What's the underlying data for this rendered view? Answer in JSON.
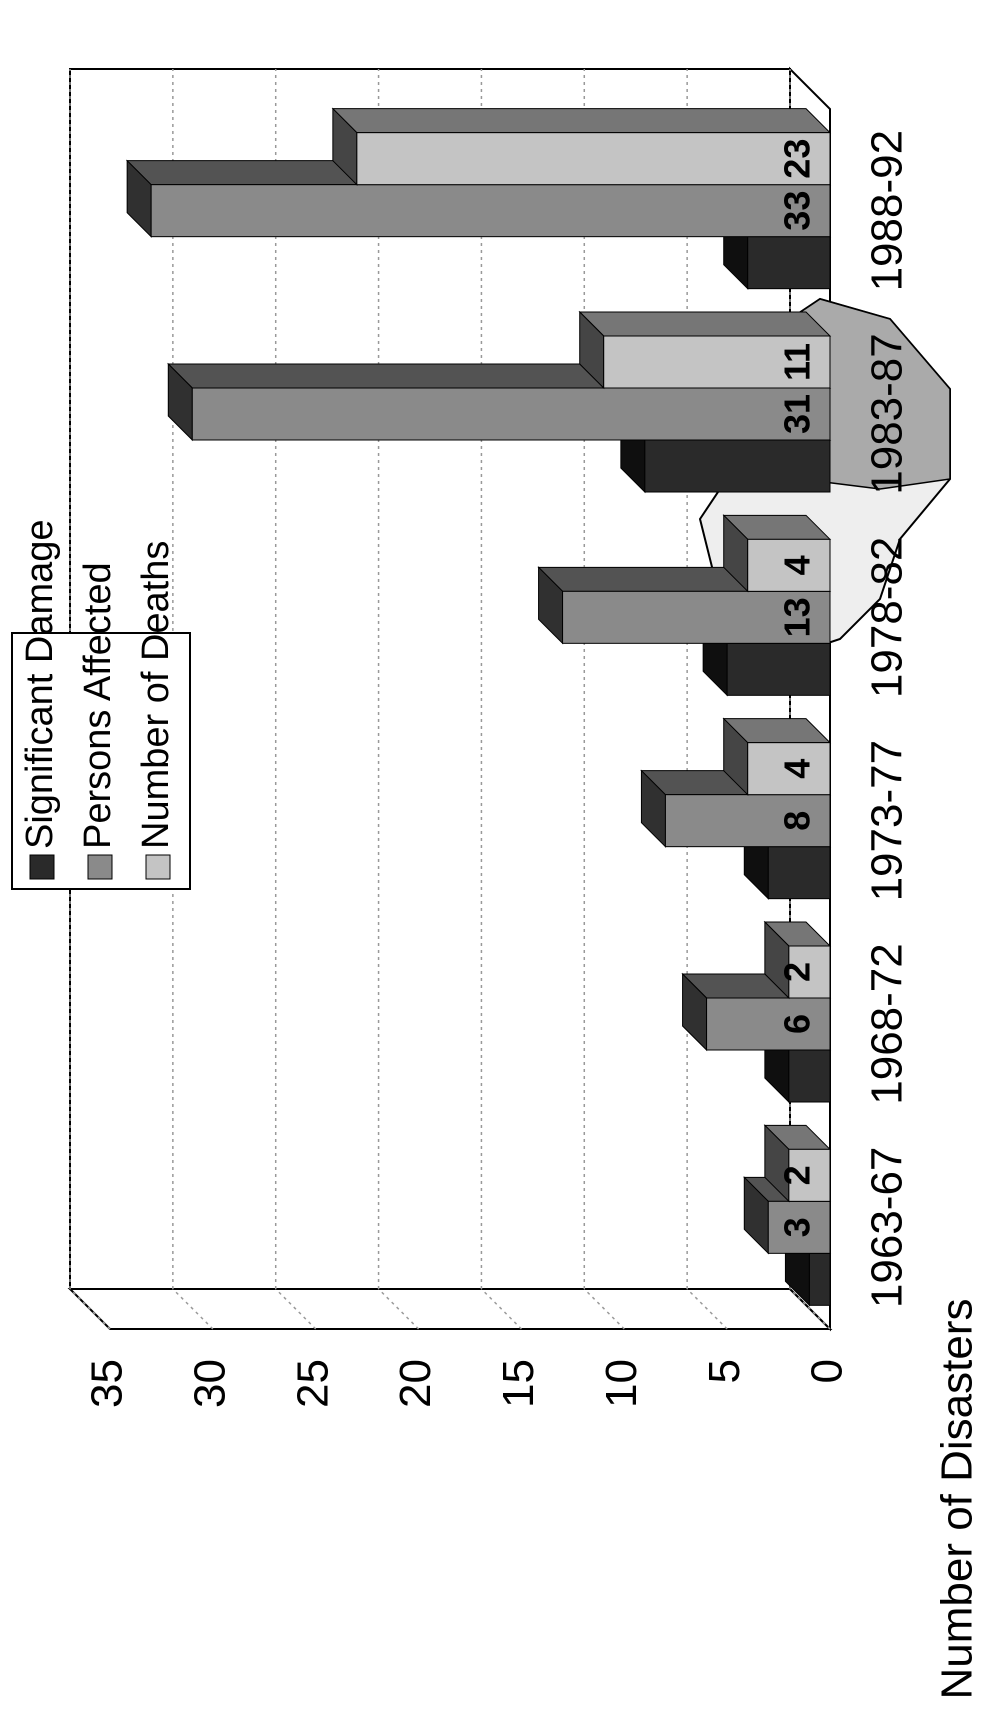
{
  "chart_data": {
    "type": "bar3d",
    "y_label": "Number of Disasters",
    "categories": [
      "1963-67",
      "1968-72",
      "1973-77",
      "1978-82",
      "1983-87",
      "1988-92"
    ],
    "series": [
      {
        "name": "Significant Damage",
        "color": "#2a2a2a",
        "values": [
          1,
          2,
          3,
          5,
          9,
          4
        ]
      },
      {
        "name": "Persons Affected",
        "color": "#8a8a8a",
        "values": [
          3,
          6,
          8,
          13,
          31,
          33
        ]
      },
      {
        "name": "Number of Deaths",
        "color": "#c4c4c4",
        "values": [
          2,
          2,
          4,
          4,
          11,
          23
        ]
      }
    ],
    "labeled_series": [
      1,
      2
    ],
    "ylim": [
      0,
      35
    ],
    "yticks": [
      0,
      5,
      10,
      15,
      20,
      25,
      30,
      35
    ],
    "grid": true
  }
}
